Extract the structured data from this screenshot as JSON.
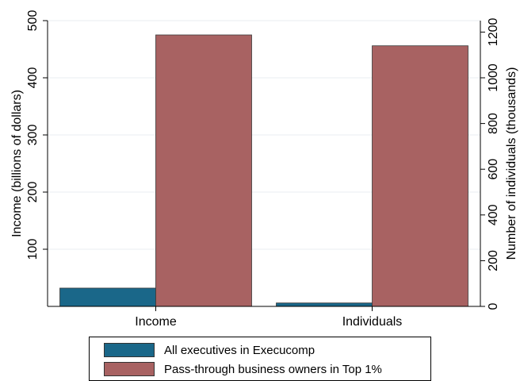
{
  "chart_data": {
    "type": "bar",
    "categories": [
      "Income",
      "Individuals"
    ],
    "series": [
      {
        "name": "All executives in Execucomp",
        "color": "#1a6789",
        "values": [
          32,
          15
        ],
        "axis": [
          "left",
          "right"
        ]
      },
      {
        "name": "Pass-through business owners in Top 1%",
        "color": "#a86262",
        "values": [
          475,
          1140
        ],
        "axis": [
          "left",
          "right"
        ]
      }
    ],
    "ylabel": "Income (billions of dollars)",
    "ylim": [
      0,
      500
    ],
    "yticks": [
      "100",
      "200",
      "300",
      "400",
      "500"
    ],
    "y2label": "Number of individuals (thousands)",
    "y2lim": [
      0,
      1250
    ],
    "y2ticks": [
      "0",
      "200",
      "400",
      "600",
      "800",
      "1000",
      "1200"
    ],
    "grid": true,
    "legend_position": "bottom"
  }
}
